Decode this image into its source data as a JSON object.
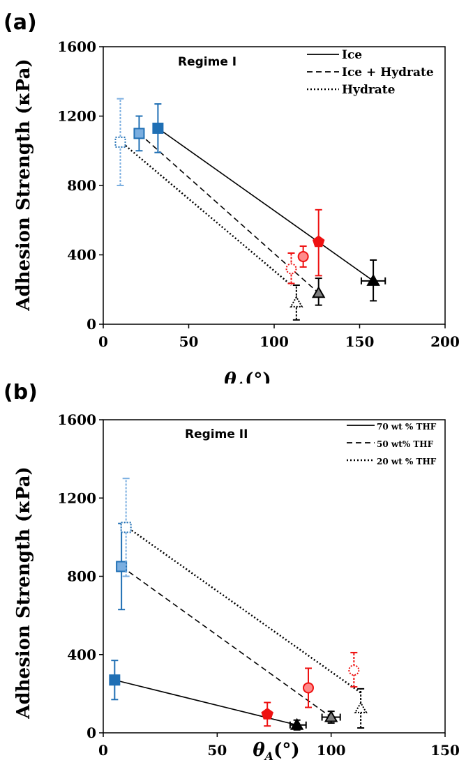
{
  "colors": {
    "blue": "#1f6fb4",
    "light_blue": "#7aaee0",
    "red": "#ee1111",
    "pink": "#ff8a8a",
    "black": "#000000",
    "gray": "#808080"
  },
  "panels": [
    {
      "letter": "(a)",
      "regime": "Regime I",
      "xlabel_main": "θ",
      "xlabel_sub": "A",
      "xlabel_unit": "(°)",
      "ylabel": "Adhesion Strength (κPa)"
    },
    {
      "letter": "(b)",
      "regime": "Regime II",
      "xlabel_main": "θ",
      "xlabel_sub": "A",
      "xlabel_unit": "(°)",
      "ylabel": "Adhesion Strength (κPa)"
    }
  ],
  "chart_data": [
    {
      "type": "scatter",
      "title": "",
      "xlabel": "θA (°)",
      "ylabel": "Adhesion Strength (κPa)",
      "xlim": [
        0,
        200
      ],
      "ylim": [
        0,
        1600
      ],
      "xticks": [
        "0",
        "50",
        "100",
        "150",
        "200"
      ],
      "yticks": [
        "0",
        "400",
        "800",
        "1200",
        "1600"
      ],
      "annotation": "Regime I",
      "legend_position": "top-right",
      "grid": false,
      "series": [
        {
          "name": "Ice",
          "line_style": "solid",
          "trend": [
            [
              32,
              1130
            ],
            [
              158,
              250
            ]
          ],
          "points": [
            {
              "x": 32,
              "y": 1130,
              "yerr": [
                990,
                1270
              ],
              "marker": "square",
              "fill": "blue"
            },
            {
              "x": 126,
              "y": 475,
              "yerr": [
                280,
                660
              ],
              "marker": "pentagon",
              "fill": "red"
            },
            {
              "x": 158,
              "y": 250,
              "yerr": [
                135,
                370
              ],
              "xerr": [
                151,
                165
              ],
              "marker": "triangle",
              "fill": "black"
            }
          ]
        },
        {
          "name": "Ice + Hydrate",
          "line_style": "dashed",
          "trend": [
            [
              21,
              1100
            ],
            [
              126,
              180
            ]
          ],
          "points": [
            {
              "x": 21,
              "y": 1100,
              "yerr": [
                1000,
                1200
              ],
              "marker": "square",
              "fill": "light_blue"
            },
            {
              "x": 117,
              "y": 390,
              "yerr": [
                330,
                450
              ],
              "marker": "circle",
              "fill": "pink"
            },
            {
              "x": 126,
              "y": 180,
              "yerr": [
                110,
                265
              ],
              "marker": "triangle",
              "fill": "gray"
            }
          ]
        },
        {
          "name": "Hydrate",
          "line_style": "dotted",
          "trend": [
            [
              10,
              1055
            ],
            [
              110,
              225
            ]
          ],
          "points": [
            {
              "x": 10,
              "y": 1050,
              "yerr": [
                800,
                1300
              ],
              "marker": "square",
              "fill": "hollow-blue"
            },
            {
              "x": 110,
              "y": 320,
              "yerr": [
                235,
                410
              ],
              "marker": "circle",
              "fill": "hollow-red"
            },
            {
              "x": 113,
              "y": 125,
              "yerr": [
                25,
                225
              ],
              "marker": "triangle",
              "fill": "hollow-black"
            }
          ]
        }
      ]
    },
    {
      "type": "scatter",
      "title": "",
      "xlabel": "θA (°)",
      "ylabel": "Adhesion Strength (κPa)",
      "xlim": [
        0,
        150
      ],
      "ylim": [
        0,
        1600
      ],
      "xticks": [
        "0",
        "50",
        "100",
        "150"
      ],
      "yticks": [
        "0",
        "400",
        "800",
        "1200",
        "1600"
      ],
      "annotation": "Regime II",
      "legend_position": "top-right",
      "grid": false,
      "series": [
        {
          "name": "70 wt % THF",
          "line_style": "solid",
          "trend": [
            [
              5,
              270
            ],
            [
              85,
              40
            ]
          ],
          "points": [
            {
              "x": 5,
              "y": 270,
              "yerr": [
                170,
                370
              ],
              "marker": "square",
              "fill": "blue"
            },
            {
              "x": 72,
              "y": 95,
              "yerr": [
                35,
                155
              ],
              "marker": "pentagon",
              "fill": "red"
            },
            {
              "x": 85,
              "y": 40,
              "yerr": [
                15,
                65
              ],
              "xerr": [
                82,
                89
              ],
              "marker": "triangle",
              "fill": "black"
            }
          ]
        },
        {
          "name": "50 wt% THF",
          "line_style": "dashed",
          "trend": [
            [
              8,
              850
            ],
            [
              100,
              80
            ]
          ],
          "points": [
            {
              "x": 8,
              "y": 850,
              "yerr": [
                630,
                1070
              ],
              "marker": "square",
              "fill": "light_blue"
            },
            {
              "x": 90,
              "y": 230,
              "yerr": [
                130,
                330
              ],
              "marker": "circle",
              "fill": "pink"
            },
            {
              "x": 100,
              "y": 80,
              "yerr": [
                50,
                110
              ],
              "xerr": [
                96,
                104
              ],
              "marker": "triangle",
              "fill": "gray"
            }
          ]
        },
        {
          "name": "20 wt % THF",
          "line_style": "dotted",
          "trend": [
            [
              10,
              1055
            ],
            [
              113,
              205
            ]
          ],
          "points": [
            {
              "x": 10,
              "y": 1050,
              "yerr": [
                800,
                1300
              ],
              "marker": "square",
              "fill": "hollow-blue"
            },
            {
              "x": 110,
              "y": 320,
              "yerr": [
                235,
                410
              ],
              "marker": "circle",
              "fill": "hollow-red"
            },
            {
              "x": 113,
              "y": 125,
              "yerr": [
                25,
                225
              ],
              "marker": "triangle",
              "fill": "hollow-black"
            }
          ]
        }
      ]
    }
  ]
}
